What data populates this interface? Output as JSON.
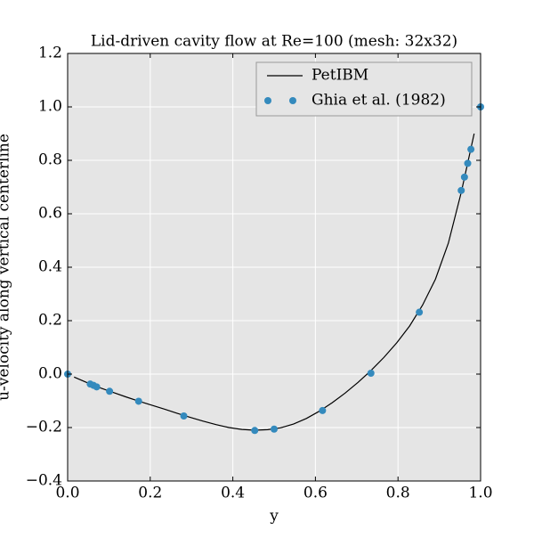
{
  "chart_data": {
    "type": "line",
    "title": "Lid-driven cavity flow at Re=100 (mesh: 32x32)",
    "xlabel": "y",
    "ylabel": "u-velocity along vertical centerline",
    "xlim": [
      0,
      1
    ],
    "ylim": [
      -0.4,
      1.2
    ],
    "xticks": [
      {
        "value": 0,
        "label": "0.0"
      },
      0.2,
      0.4,
      0.6,
      0.8,
      {
        "value": 1,
        "label": "1.0"
      }
    ],
    "yticks": [
      {
        "value": -0.4,
        "label": "−0.4"
      },
      {
        "value": -0.2,
        "label": "−0.2"
      },
      {
        "value": 0,
        "label": "0.0"
      },
      0.2,
      0.4,
      0.6,
      0.8,
      {
        "value": 1,
        "label": "1.0"
      },
      1.2
    ],
    "grid": true,
    "legend": "upper right",
    "series": [
      {
        "name": "PetIBM",
        "color": "#000000",
        "style": "line",
        "x": [
          0.0156,
          0.0469,
          0.0781,
          0.1094,
          0.1406,
          0.1719,
          0.2031,
          0.2344,
          0.2656,
          0.2969,
          0.3281,
          0.3594,
          0.3906,
          0.4219,
          0.4531,
          0.4844,
          0.5156,
          0.5469,
          0.5781,
          0.6094,
          0.6406,
          0.6719,
          0.7031,
          0.7344,
          0.7656,
          0.7969,
          0.8281,
          0.8594,
          0.8906,
          0.9219,
          0.9531,
          0.9844
        ],
        "values": [
          -0.011,
          -0.032,
          -0.051,
          -0.068,
          -0.085,
          -0.101,
          -0.116,
          -0.131,
          -0.147,
          -0.162,
          -0.176,
          -0.189,
          -0.2,
          -0.207,
          -0.21,
          -0.208,
          -0.201,
          -0.187,
          -0.166,
          -0.139,
          -0.107,
          -0.071,
          -0.031,
          0.013,
          0.062,
          0.117,
          0.18,
          0.258,
          0.355,
          0.49,
          0.68,
          0.9
        ]
      },
      {
        "name": "Ghia et al. (1982)",
        "color": "#348abd",
        "style": "marker",
        "x": [
          0,
          0.0547,
          0.0625,
          0.0703,
          0.1016,
          0.1719,
          0.2813,
          0.4531,
          0.5,
          0.6172,
          0.7344,
          0.8516,
          0.9531,
          0.9609,
          0.9688,
          0.9766,
          1
        ],
        "values": [
          0,
          -0.03717,
          -0.04192,
          -0.04775,
          -0.06434,
          -0.1015,
          -0.15662,
          -0.2109,
          -0.20581,
          -0.13641,
          0.00332,
          0.23151,
          0.68717,
          0.73722,
          0.78871,
          0.84123,
          1
        ]
      }
    ]
  }
}
